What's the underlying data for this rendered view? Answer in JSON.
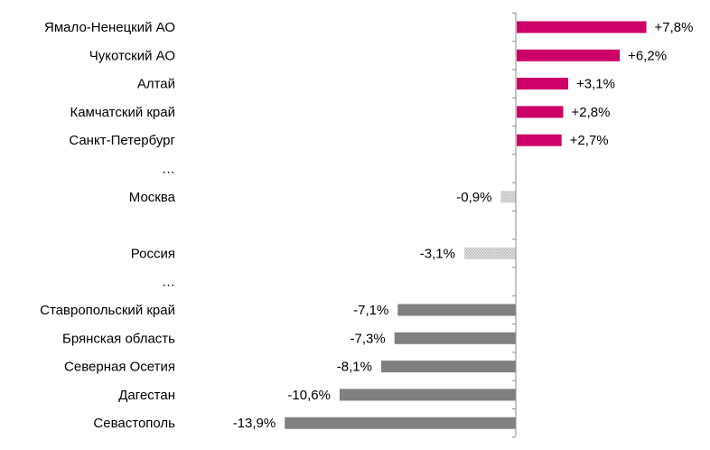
{
  "chart_data": {
    "type": "bar",
    "orientation": "horizontal",
    "title": "",
    "xlabel": "",
    "ylabel": "",
    "grid": false,
    "legend": "none",
    "xlim": [
      -13.9,
      7.8
    ],
    "rows": [
      {
        "label": "Ямало-Ненецкий АО",
        "value": 7.8,
        "value_label": "+7,8%",
        "group": "top"
      },
      {
        "label": "Чукотский АО",
        "value": 6.2,
        "value_label": "+6,2%",
        "group": "top"
      },
      {
        "label": "Алтай",
        "value": 3.1,
        "value_label": "+3,1%",
        "group": "top"
      },
      {
        "label": "Камчатский край",
        "value": 2.8,
        "value_label": "+2,8%",
        "group": "top"
      },
      {
        "label": "Санкт-Петербург",
        "value": 2.7,
        "value_label": "+2,7%",
        "group": "top"
      },
      {
        "label": "…",
        "value": null,
        "value_label": "",
        "group": "gap"
      },
      {
        "label": "Москва",
        "value": -0.9,
        "value_label": "-0,9%",
        "group": "highlight"
      },
      {
        "label": "",
        "value": null,
        "value_label": "",
        "group": "gap"
      },
      {
        "label": "Россия",
        "value": -3.1,
        "value_label": "-3,1%",
        "group": "highlight"
      },
      {
        "label": "…",
        "value": null,
        "value_label": "",
        "group": "gap"
      },
      {
        "label": "Ставропольский край",
        "value": -7.1,
        "value_label": "-7,1%",
        "group": "bottom"
      },
      {
        "label": "Брянская область",
        "value": -7.3,
        "value_label": "-7,3%",
        "group": "bottom"
      },
      {
        "label": "Северная Осетия",
        "value": -8.1,
        "value_label": "-8,1%",
        "group": "bottom"
      },
      {
        "label": "Дагестан",
        "value": -10.6,
        "value_label": "-10,6%",
        "group": "bottom"
      },
      {
        "label": "Севастополь",
        "value": -13.9,
        "value_label": "-13,9%",
        "group": "bottom"
      }
    ],
    "colors": {
      "top": "#cc0066",
      "highlight": "#c8c8c8",
      "bottom": "#808080",
      "axis": "#8c8c8c"
    }
  }
}
